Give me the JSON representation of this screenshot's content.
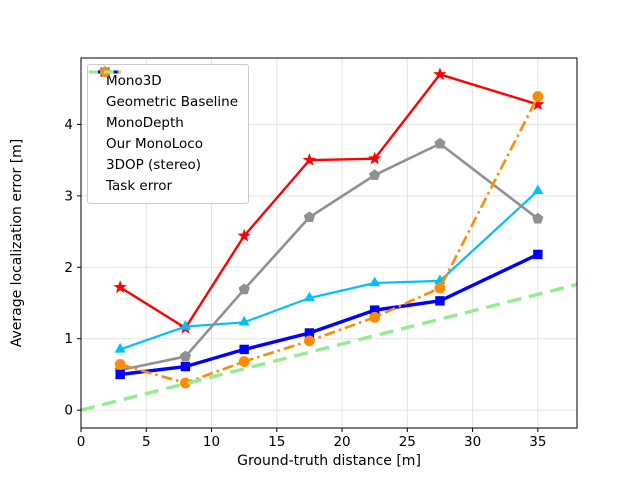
{
  "figure": {
    "background": "#ffffff",
    "text_color": "#000000",
    "grid_color": "#e3e3e3",
    "spine_color": "#000000"
  },
  "chart_data": {
    "type": "line",
    "title": "",
    "xlabel": "Ground-truth distance [m]",
    "ylabel": "Average localization error [m]",
    "xlim": [
      0,
      38
    ],
    "ylim": [
      -0.25,
      4.93
    ],
    "xticks": [
      0,
      5,
      10,
      15,
      20,
      25,
      30,
      35
    ],
    "yticks": [
      0,
      1,
      2,
      3,
      4
    ],
    "grid": true,
    "legend_position": "upper-left",
    "series": [
      {
        "name": "Mono3D",
        "color": "#ff0000",
        "marker": "star",
        "linestyle": "solid",
        "linewidth": 2.4,
        "x": [
          3,
          8,
          12.5,
          17.5,
          22.5,
          27.5,
          35
        ],
        "values": [
          1.72,
          1.15,
          2.44,
          3.5,
          3.52,
          4.7,
          4.28
        ]
      },
      {
        "name": "Geometric Baseline",
        "color": "#00bfff",
        "marker": "triangle",
        "linestyle": "solid",
        "linewidth": 2.2,
        "x": [
          3,
          8,
          12.5,
          17.5,
          22.5,
          27.5,
          35
        ],
        "values": [
          0.85,
          1.17,
          1.23,
          1.57,
          1.78,
          1.81,
          3.07
        ]
      },
      {
        "name": "MonoDepth",
        "color": "#909090",
        "marker": "pentagon",
        "linestyle": "solid",
        "linewidth": 2.6,
        "x": [
          3,
          8,
          12.5,
          17.5,
          22.5,
          27.5,
          35
        ],
        "values": [
          0.56,
          0.75,
          1.69,
          2.7,
          3.29,
          3.73,
          2.68
        ]
      },
      {
        "name": "Our MonoLoco",
        "color": "#0000ff",
        "marker": "square",
        "linestyle": "solid",
        "linewidth": 3.4,
        "x": [
          3,
          8,
          12.5,
          17.5,
          22.5,
          27.5,
          35
        ],
        "values": [
          0.5,
          0.61,
          0.85,
          1.08,
          1.4,
          1.53,
          2.18
        ]
      },
      {
        "name": "3DOP (stereo)",
        "color": "#ff8c00",
        "marker": "circle",
        "linestyle": "dashdot",
        "linewidth": 2.6,
        "x": [
          3,
          8,
          12.5,
          17.5,
          22.5,
          27.5,
          35
        ],
        "values": [
          0.64,
          0.38,
          0.68,
          0.97,
          1.3,
          1.71,
          4.39
        ]
      },
      {
        "name": "Task error",
        "color": "#90ee90",
        "marker": "none",
        "linestyle": "dashed",
        "linewidth": 3.4,
        "x": [
          0,
          38
        ],
        "values": [
          0,
          1.76
        ]
      }
    ]
  }
}
